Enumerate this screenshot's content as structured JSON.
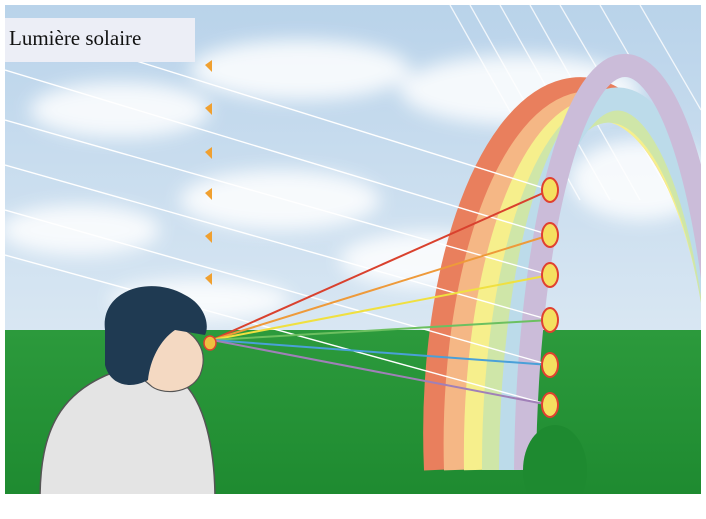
{
  "label": "Lumière solaire"
}
